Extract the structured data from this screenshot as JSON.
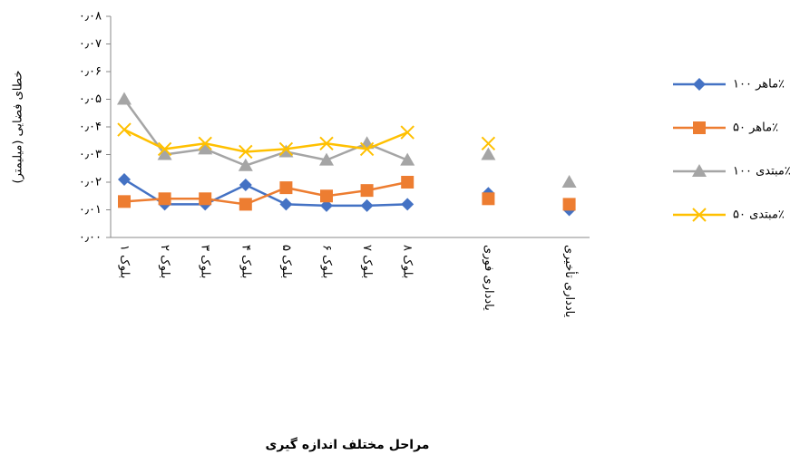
{
  "chart_data": {
    "type": "line",
    "x_label": "مراحل مختلف اندازه گیری",
    "y_label": "خطای فضایی (میلیمتر)",
    "categories": [
      "بلوک ۱",
      "بلوک ۲",
      "بلوک ۳",
      "بلوک ۴",
      "بلوک ۵",
      "بلوک ۶",
      "بلوک ۷",
      "بلوک ۸",
      null,
      "یادداری فوری",
      null,
      "یادداری تأخیری"
    ],
    "ylim": [
      0,
      0.08
    ],
    "yticks": [
      {
        "value": 0,
        "label": "۰٫۰۰"
      },
      {
        "value": 0.01,
        "label": "۰٫۰۱"
      },
      {
        "value": 0.02,
        "label": "۰٫۰۲"
      },
      {
        "value": 0.03,
        "label": "۰٫۰۳"
      },
      {
        "value": 0.04,
        "label": "۰٫۰۴"
      },
      {
        "value": 0.05,
        "label": "۰٫۰۵"
      },
      {
        "value": 0.06,
        "label": "۰٫۰۶"
      },
      {
        "value": 0.07,
        "label": "۰٫۰۷"
      },
      {
        "value": 0.08,
        "label": "۰٫۰۸"
      }
    ],
    "legend": "right",
    "series": [
      {
        "name": "ماهر ۱۰۰٪",
        "color": "#4472c4",
        "marker": "diamond",
        "values": [
          0.021,
          0.012,
          0.012,
          0.019,
          0.012,
          0.0115,
          0.0115,
          0.012,
          null,
          0.016,
          null,
          0.01
        ]
      },
      {
        "name": "ماهر ۵۰٪",
        "color": "#ed7d31",
        "marker": "square",
        "values": [
          0.013,
          0.014,
          0.014,
          0.012,
          0.018,
          0.015,
          0.017,
          0.02,
          null,
          0.014,
          null,
          0.012
        ]
      },
      {
        "name": "مبتدی ۱۰۰٪",
        "color": "#a5a5a5",
        "marker": "triangle",
        "values": [
          0.05,
          0.03,
          0.032,
          0.026,
          0.031,
          0.028,
          0.034,
          0.028,
          null,
          0.03,
          null,
          0.02
        ]
      },
      {
        "name": "مبتدی ۵۰٪",
        "color": "#ffc000",
        "marker": "x",
        "values": [
          0.039,
          0.032,
          0.034,
          0.031,
          0.032,
          0.034,
          0.032,
          0.038,
          null,
          0.034,
          null,
          null
        ]
      }
    ]
  }
}
